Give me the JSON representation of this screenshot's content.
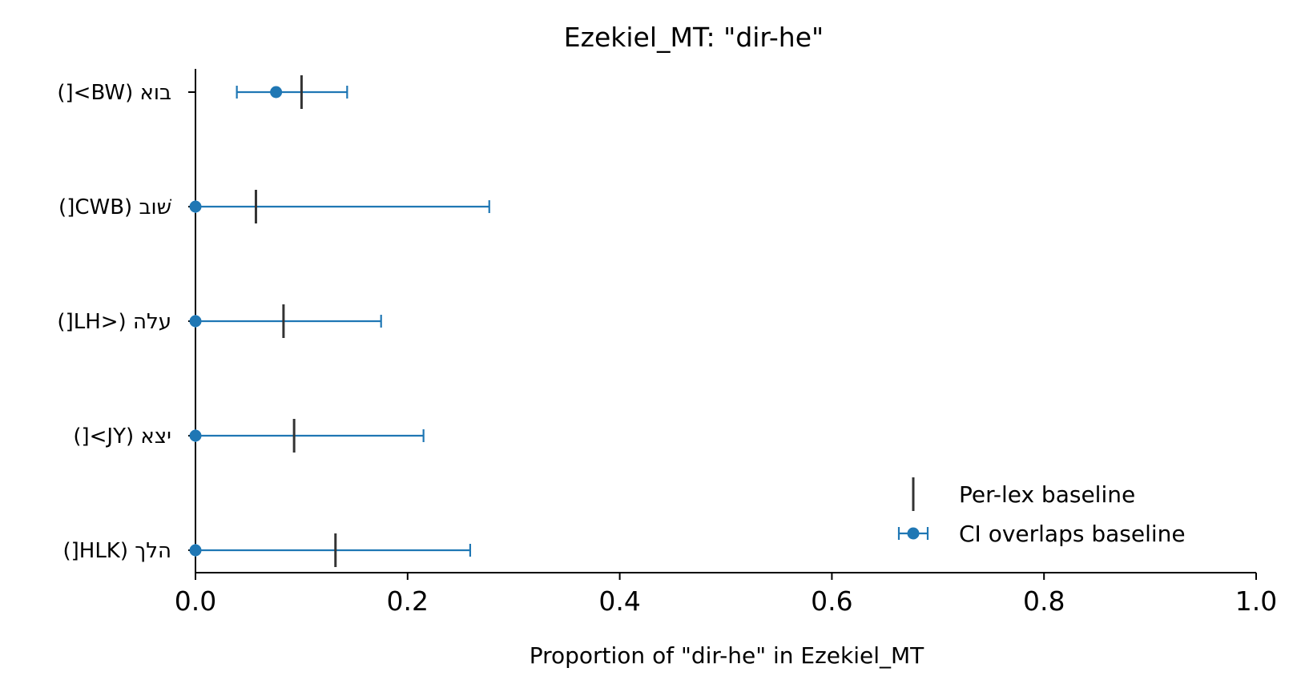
{
  "chart_data": {
    "type": "errorbar",
    "title": "Ezekiel_MT: \"dir-he\"",
    "xlabel": "Proportion of \"dir-he\" in Ezekiel_MT",
    "ylabel": "",
    "xlim": [
      0.0,
      1.0
    ],
    "xticks": [
      0.0,
      0.2,
      0.4,
      0.6,
      0.8,
      1.0
    ],
    "xtick_labels": [
      "0.0",
      "0.2",
      "0.4",
      "0.6",
      "0.8",
      "1.0"
    ],
    "grid": false,
    "legend_position": "lower right",
    "colors": {
      "ci": "#1f77b4",
      "baseline": "#333333",
      "axis": "#000000"
    },
    "categories": [
      "בוא (BW>[)",
      "שׁוב (CWB[)",
      "עלה (<LH[)",
      "יצא (JY>[)",
      "הלך (HLK[)"
    ],
    "series": [
      {
        "name": "CI overlaps baseline",
        "marker": "circle",
        "points": [
          {
            "category": "בוא (BW>[)",
            "value": 0.076,
            "ci_low": 0.039,
            "ci_high": 0.143
          },
          {
            "category": "שׁוב (CWB[)",
            "value": 0.0,
            "ci_low": 0.0,
            "ci_high": 0.277
          },
          {
            "category": "עלה (<LH[)",
            "value": 0.0,
            "ci_low": 0.0,
            "ci_high": 0.175
          },
          {
            "category": "יצא (JY>[)",
            "value": 0.0,
            "ci_low": 0.0,
            "ci_high": 0.215
          },
          {
            "category": "הלך (HLK[)",
            "value": 0.0,
            "ci_low": 0.0,
            "ci_high": 0.259
          }
        ]
      },
      {
        "name": "Per-lex baseline",
        "marker": "vertical-line",
        "points": [
          {
            "category": "בוא (BW>[)",
            "value": 0.1
          },
          {
            "category": "שׁוב (CWB[)",
            "value": 0.057
          },
          {
            "category": "עלה (<LH[)",
            "value": 0.083
          },
          {
            "category": "יצא (JY>[)",
            "value": 0.093
          },
          {
            "category": "הלך (HLK[)",
            "value": 0.132
          }
        ]
      }
    ],
    "legend": [
      {
        "label": "Per-lex baseline",
        "marker": "vertical-line"
      },
      {
        "label": "CI overlaps baseline",
        "marker": "errorbar-circle"
      }
    ]
  }
}
